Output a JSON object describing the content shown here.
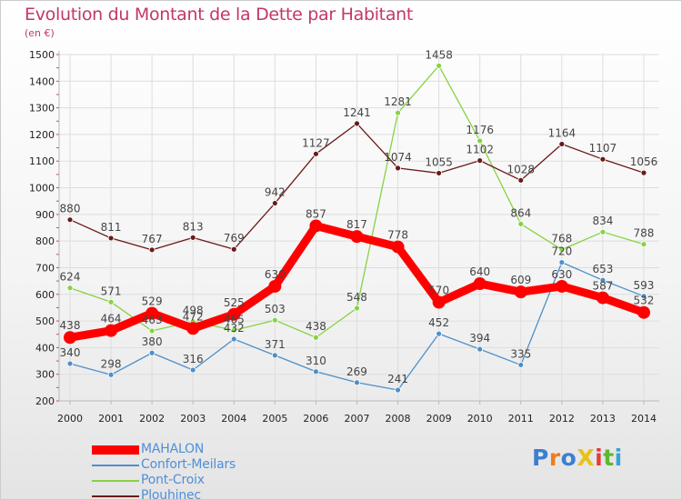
{
  "title": "Evolution du Montant de la Dette par Habitant",
  "unit": "(en €)",
  "logo": {
    "text": "ProXiti",
    "letter_colors": [
      "#3b7fd0",
      "#f07c1a",
      "#3b7fd0",
      "#e8c21a",
      "#e83a3a",
      "#5cb82e",
      "#2fa6d9"
    ]
  },
  "chart_data": {
    "type": "line",
    "title": "Evolution du Montant de la Dette par Habitant",
    "ylabel": "(en €)",
    "xlabel": "",
    "ylim": [
      200,
      1500
    ],
    "yticks": [
      200,
      300,
      400,
      500,
      600,
      700,
      800,
      900,
      1000,
      1100,
      1200,
      1300,
      1400,
      1500
    ],
    "grid": true,
    "legend_position": "bottom-left",
    "categories": [
      "2000",
      "2001",
      "2002",
      "2003",
      "2004",
      "2005",
      "2006",
      "2007",
      "2008",
      "2009",
      "2010",
      "2011",
      "2012",
      "2013",
      "2014"
    ],
    "series": [
      {
        "name": "MAHALON",
        "color": "#ff0000",
        "emphasis": true,
        "values": [
          438,
          464,
          529,
          472,
          525,
          630,
          857,
          817,
          778,
          570,
          640,
          609,
          630,
          587,
          532
        ],
        "labels": [
          "438",
          "464",
          "529",
          "472",
          "525",
          "630",
          "857",
          "817",
          "778",
          "570",
          "640",
          "609",
          "630",
          "587",
          "532"
        ]
      },
      {
        "name": "Confort-Meilars",
        "color": "#4f8fc9",
        "values": [
          340,
          298,
          380,
          316,
          432,
          371,
          310,
          269,
          241,
          452,
          394,
          335,
          720,
          653,
          593
        ],
        "labels": [
          "340",
          "298",
          "380",
          "316",
          "432",
          "371",
          "310",
          "269",
          "241",
          "452",
          "394",
          "335",
          "720",
          "653",
          "593"
        ]
      },
      {
        "name": "Pont-Croix",
        "color": "#86d243",
        "values": [
          624,
          571,
          463,
          498,
          465,
          503,
          438,
          548,
          1281,
          1458,
          1176,
          864,
          768,
          834,
          788
        ],
        "labels": [
          "624",
          "571",
          "463",
          "498",
          "465",
          "503",
          "438",
          "548",
          "1281",
          "1458",
          "1176",
          "864",
          "768",
          "834",
          "788"
        ]
      },
      {
        "name": "Plouhinec",
        "color": "#6b1a1a",
        "values": [
          880,
          811,
          767,
          813,
          769,
          942,
          1127,
          1241,
          1074,
          1055,
          1102,
          1028,
          1164,
          1107,
          1056
        ],
        "labels": [
          "880",
          "811",
          "767",
          "813",
          "769",
          "942",
          "1127",
          "1241",
          "1074",
          "1055",
          "1102",
          "1028",
          "1164",
          "1107",
          "1056"
        ]
      }
    ]
  }
}
